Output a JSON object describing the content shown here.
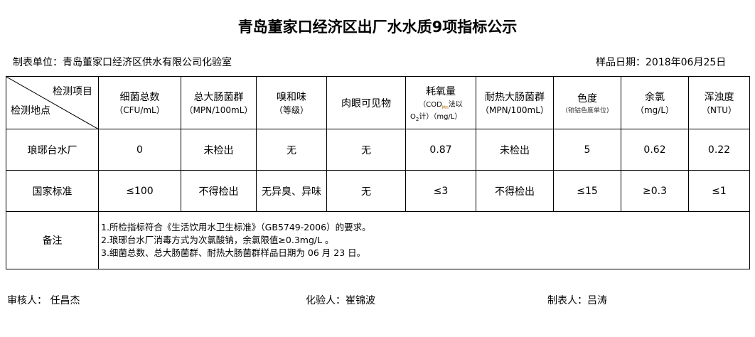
{
  "title": "青岛董家口经济区出厂水水质9项指标公示",
  "unit": "制表单位：青岛董家口经济区供水有限公司化验室",
  "date": "样品日期：2018年06月25日",
  "corner": {
    "top": "检测项目",
    "bottom": "检测地点"
  },
  "headers": [
    {
      "l1": "细菌总数",
      "l2": "（CFU/mL）"
    },
    {
      "l1": "总大肠菌群",
      "l2": "（MPN/100mL）"
    },
    {
      "l1": "嗅和味",
      "l2": "（等级）"
    },
    {
      "l1": "肉眼可见物",
      "l2": ""
    },
    {
      "l1": "耗氧量",
      "l2": "（COD",
      "sub": "Mn",
      "l2b": "法以",
      "l3": "O",
      "sub2": "2",
      "l3b": "计）（mg/L）"
    },
    {
      "l1": "耐热大肠菌群",
      "l2": "（MPN/100mL）"
    },
    {
      "l1": "色度",
      "l2": "(铂钴色度单位)"
    },
    {
      "l1": "余氯",
      "l2": "（mg/L）"
    },
    {
      "l1": "浑浊度",
      "l2": "（NTU）"
    }
  ],
  "rows": [
    {
      "site": "琅琊台水厂",
      "values": [
        "0",
        "未检出",
        "无",
        "无",
        "0.87",
        "未检出",
        "5",
        "0.62",
        "0.22"
      ]
    },
    {
      "site": "国家标准",
      "values": [
        "≤100",
        "不得检出",
        "无异臭、异味",
        "无",
        "≤3",
        "不得检出",
        "≤15",
        "≥0.3",
        "≤1"
      ]
    }
  ],
  "notes": {
    "label": "备注",
    "lines": [
      "1.所检指标符合《生活饮用水卫生标准》（GB5749-2006）的要求。",
      "2.琅琊台水厂消毒方式为次氯酸钠，余氯限值≥0.3mg/L 。",
      "3.细菌总数、总大肠菌群、耐热大肠菌群样品日期为 06 月 23 日。"
    ]
  },
  "footer": {
    "reviewer": "审核人：  任昌杰",
    "tester": "化验人：崔锦波",
    "maker": "制表人：吕涛"
  }
}
